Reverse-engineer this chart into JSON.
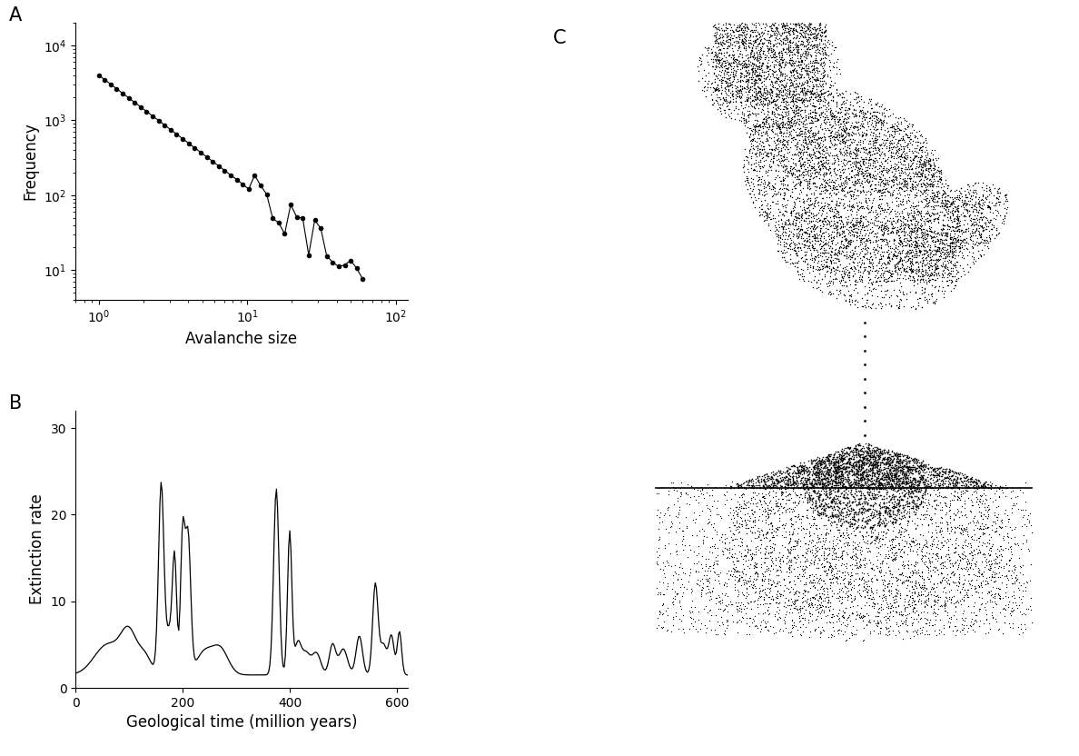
{
  "panel_A_label": "A",
  "panel_B_label": "B",
  "panel_C_label": "C",
  "plot_A": {
    "xlabel": "Avalanche size",
    "ylabel": "Frequency",
    "xlim": [
      0.7,
      120
    ],
    "ylim": [
      4,
      20000
    ],
    "amplitude": 4000,
    "exponent": -1.5,
    "x_start": 1.0,
    "x_end": 60.0,
    "n_points": 45
  },
  "plot_B": {
    "xlabel": "Geological time (million years)",
    "ylabel": "Extinction rate",
    "xlim": [
      0,
      620
    ],
    "ylim": [
      0,
      32
    ],
    "yticks": [
      0,
      10,
      20,
      30
    ],
    "xticks": [
      0,
      200,
      400,
      600
    ],
    "n_time": 300
  },
  "bg_color": "#ffffff",
  "line_color": "#000000",
  "marker_color": "#000000",
  "label_fontsize": 12,
  "tick_fontsize": 10,
  "panel_label_fontsize": 15
}
